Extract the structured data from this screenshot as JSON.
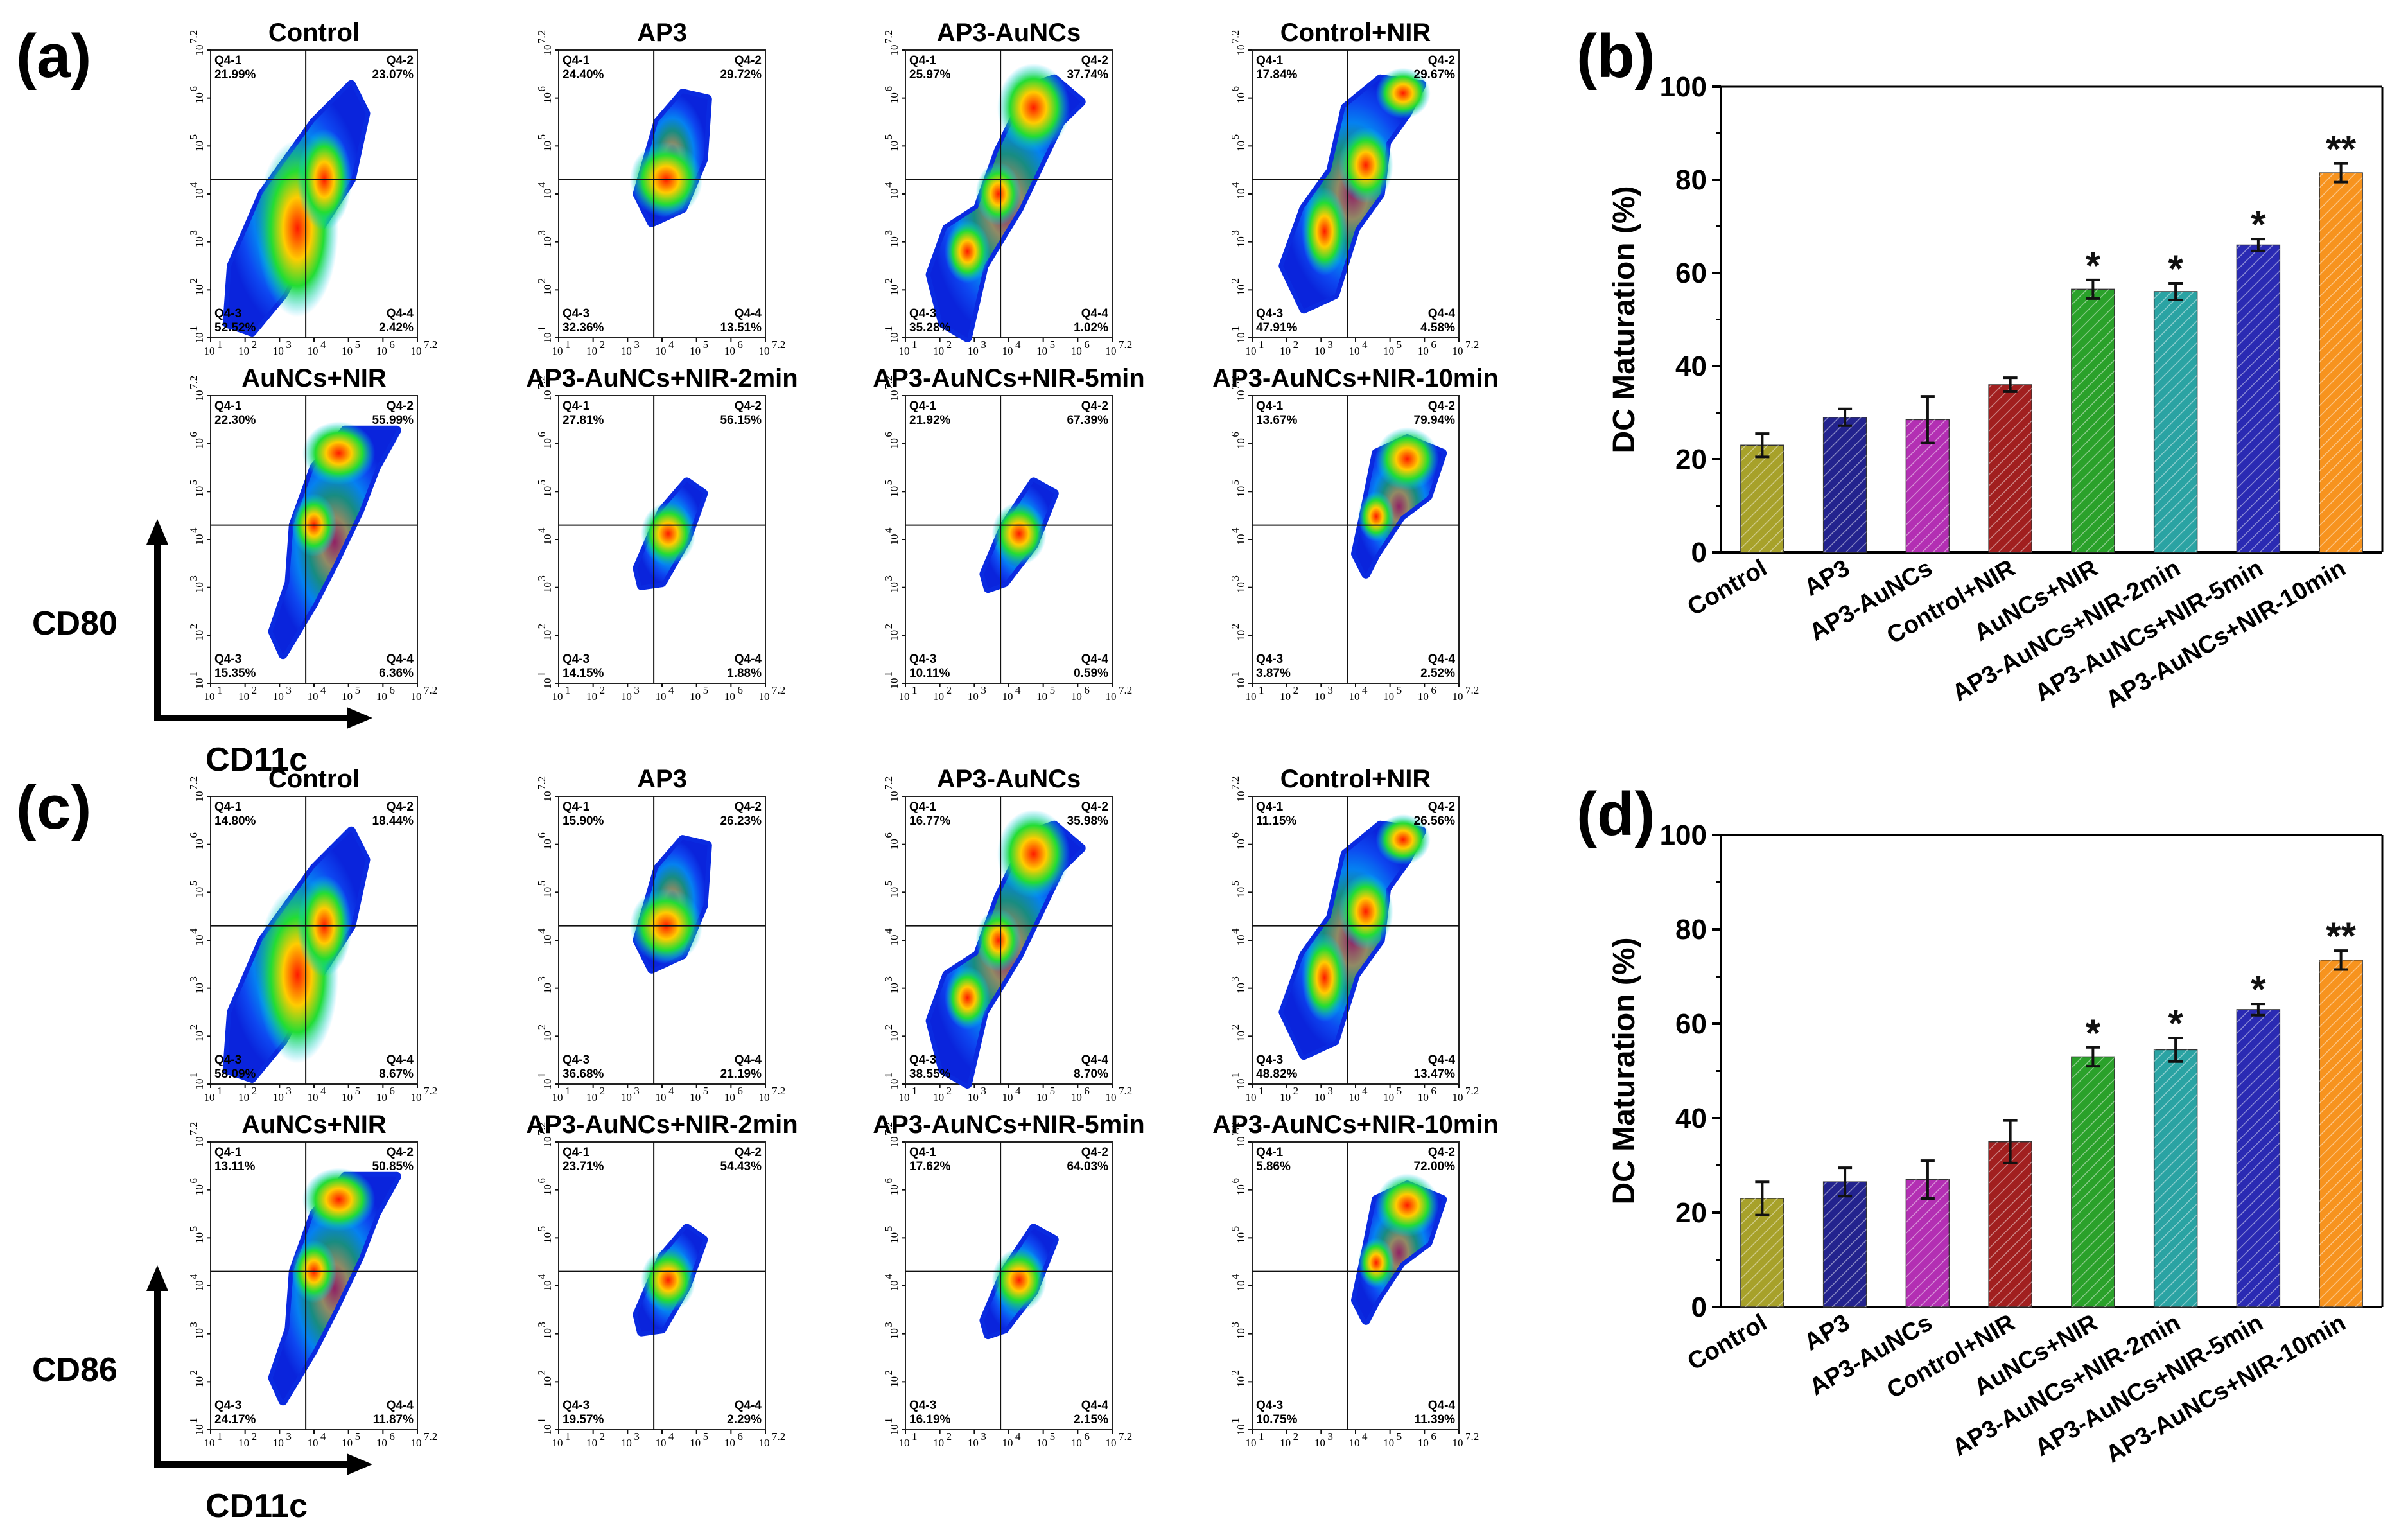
{
  "panel_labels": {
    "a": "(a)",
    "b": "(b)",
    "c": "(c)",
    "d": "(d)"
  },
  "axis_labels": {
    "a_y": "CD80",
    "a_x": "CD11c",
    "c_y": "CD86",
    "c_x": "CD11c"
  },
  "flow_ticks_x": [
    "10",
    "10",
    "10",
    "10",
    "10",
    "10",
    "10"
  ],
  "flow_ticks_exp": [
    "1",
    "2",
    "3",
    "4",
    "5",
    "6",
    "7.2"
  ],
  "colors": {
    "star": "#111111"
  },
  "chart_data": [
    {
      "type": "heatmap",
      "panel": "a",
      "description_axes": {
        "x": "CD11c",
        "y": "CD80"
      },
      "plots": [
        {
          "title": "Control",
          "q1": "Q4-1",
          "q1v": "21.99%",
          "q2": "Q4-2",
          "q2v": "23.07%",
          "q3": "Q4-3",
          "q3v": "52.52%",
          "q4": "Q4-4",
          "q4v": "2.42%"
        },
        {
          "title": "AP3",
          "q1": "Q4-1",
          "q1v": "24.40%",
          "q2": "Q4-2",
          "q2v": "29.72%",
          "q3": "Q4-3",
          "q3v": "32.36%",
          "q4": "Q4-4",
          "q4v": "13.51%"
        },
        {
          "title": "AP3-AuNCs",
          "q1": "Q4-1",
          "q1v": "25.97%",
          "q2": "Q4-2",
          "q2v": "37.74%",
          "q3": "Q4-3",
          "q3v": "35.28%",
          "q4": "Q4-4",
          "q4v": "1.02%"
        },
        {
          "title": "Control+NIR",
          "q1": "Q4-1",
          "q1v": "17.84%",
          "q2": "Q4-2",
          "q2v": "29.67%",
          "q3": "Q4-3",
          "q3v": "47.91%",
          "q4": "Q4-4",
          "q4v": "4.58%"
        },
        {
          "title": "AuNCs+NIR",
          "q1": "Q4-1",
          "q1v": "22.30%",
          "q2": "Q4-2",
          "q2v": "55.99%",
          "q3": "Q4-3",
          "q3v": "15.35%",
          "q4": "Q4-4",
          "q4v": "6.36%"
        },
        {
          "title": "AP3-AuNCs+NIR-2min",
          "q1": "Q4-1",
          "q1v": "27.81%",
          "q2": "Q4-2",
          "q2v": "56.15%",
          "q3": "Q4-3",
          "q3v": "14.15%",
          "q4": "Q4-4",
          "q4v": "1.88%"
        },
        {
          "title": "AP3-AuNCs+NIR-5min",
          "q1": "Q4-1",
          "q1v": "21.92%",
          "q2": "Q4-2",
          "q2v": "67.39%",
          "q3": "Q4-3",
          "q3v": "10.11%",
          "q4": "Q4-4",
          "q4v": "0.59%"
        },
        {
          "title": "AP3-AuNCs+NIR-10min",
          "q1": "Q4-1",
          "q1v": "13.67%",
          "q2": "Q4-2",
          "q2v": "79.94%",
          "q3": "Q4-3",
          "q3v": "3.87%",
          "q4": "Q4-4",
          "q4v": "2.52%"
        }
      ]
    },
    {
      "type": "bar",
      "panel": "b",
      "categories": [
        "Control",
        "AP3",
        "AP3-AuNCs",
        "Control+NIR",
        "AuNCs+NIR",
        "AP3-AuNCs+NIR-2min",
        "AP3-AuNCs+NIR-5min",
        "AP3-AuNCs+NIR-10min"
      ],
      "values": [
        23,
        29,
        28.5,
        36,
        56.5,
        56,
        66,
        81.5
      ],
      "errors": [
        2.5,
        1.8,
        5,
        1.5,
        2,
        1.8,
        1.3,
        2
      ],
      "significance": [
        "",
        "",
        "",
        "",
        "*",
        "*",
        "*",
        "**"
      ],
      "colors": [
        "#a7a12a",
        "#23238e",
        "#b32fb3",
        "#a11f1f",
        "#2aa12a",
        "#2aa3a3",
        "#2a2ab3",
        "#f7931e"
      ],
      "ylabel": "DC Maturation (%)",
      "xlabel": "",
      "ylim": [
        0,
        100
      ],
      "yticks": [
        "0",
        "20",
        "40",
        "60",
        "80",
        "100"
      ]
    },
    {
      "type": "heatmap",
      "panel": "c",
      "description_axes": {
        "x": "CD11c",
        "y": "CD86"
      },
      "plots": [
        {
          "title": "Control",
          "q1": "Q4-1",
          "q1v": "14.80%",
          "q2": "Q4-2",
          "q2v": "18.44%",
          "q3": "Q4-3",
          "q3v": "58.09%",
          "q4": "Q4-4",
          "q4v": "8.67%"
        },
        {
          "title": "AP3",
          "q1": "Q4-1",
          "q1v": "15.90%",
          "q2": "Q4-2",
          "q2v": "26.23%",
          "q3": "Q4-3",
          "q3v": "36.68%",
          "q4": "Q4-4",
          "q4v": "21.19%"
        },
        {
          "title": "AP3-AuNCs",
          "q1": "Q4-1",
          "q1v": "16.77%",
          "q2": "Q4-2",
          "q2v": "35.98%",
          "q3": "Q4-3",
          "q3v": "38.55%",
          "q4": "Q4-4",
          "q4v": "8.70%"
        },
        {
          "title": "Control+NIR",
          "q1": "Q4-1",
          "q1v": "11.15%",
          "q2": "Q4-2",
          "q2v": "26.56%",
          "q3": "Q4-3",
          "q3v": "48.82%",
          "q4": "Q4-4",
          "q4v": "13.47%"
        },
        {
          "title": "AuNCs+NIR",
          "q1": "Q4-1",
          "q1v": "13.11%",
          "q2": "Q4-2",
          "q2v": "50.85%",
          "q3": "Q4-3",
          "q3v": "24.17%",
          "q4": "Q4-4",
          "q4v": "11.87%"
        },
        {
          "title": "AP3-AuNCs+NIR-2min",
          "q1": "Q4-1",
          "q1v": "23.71%",
          "q2": "Q4-2",
          "q2v": "54.43%",
          "q3": "Q4-3",
          "q3v": "19.57%",
          "q4": "Q4-4",
          "q4v": "2.29%"
        },
        {
          "title": "AP3-AuNCs+NIR-5min",
          "q1": "Q4-1",
          "q1v": "17.62%",
          "q2": "Q4-2",
          "q2v": "64.03%",
          "q3": "Q4-3",
          "q3v": "16.19%",
          "q4": "Q4-4",
          "q4v": "2.15%"
        },
        {
          "title": "AP3-AuNCs+NIR-10min",
          "q1": "Q4-1",
          "q1v": "5.86%",
          "q2": "Q4-2",
          "q2v": "72.00%",
          "q3": "Q4-3",
          "q3v": "10.75%",
          "q4": "Q4-4",
          "q4v": "11.39%"
        }
      ]
    },
    {
      "type": "bar",
      "panel": "d",
      "categories": [
        "Control",
        "AP3",
        "AP3-AuNCs",
        "Control+NIR",
        "AuNCs+NIR",
        "AP3-AuNCs+NIR-2min",
        "AP3-AuNCs+NIR-5min",
        "AP3-AuNCs+NIR-10min"
      ],
      "values": [
        23,
        26.5,
        27,
        35,
        53,
        54.5,
        63,
        73.5
      ],
      "errors": [
        3.5,
        3,
        4,
        4.5,
        2,
        2.5,
        1.2,
        2
      ],
      "significance": [
        "",
        "",
        "",
        "",
        "*",
        "*",
        "*",
        "**"
      ],
      "colors": [
        "#a7a12a",
        "#23238e",
        "#b32fb3",
        "#a11f1f",
        "#2aa12a",
        "#2aa3a3",
        "#2a2ab3",
        "#f7931e"
      ],
      "ylabel": "DC Maturation (%)",
      "xlabel": "",
      "ylim": [
        0,
        100
      ],
      "yticks": [
        "0",
        "20",
        "40",
        "60",
        "80",
        "100"
      ]
    }
  ]
}
